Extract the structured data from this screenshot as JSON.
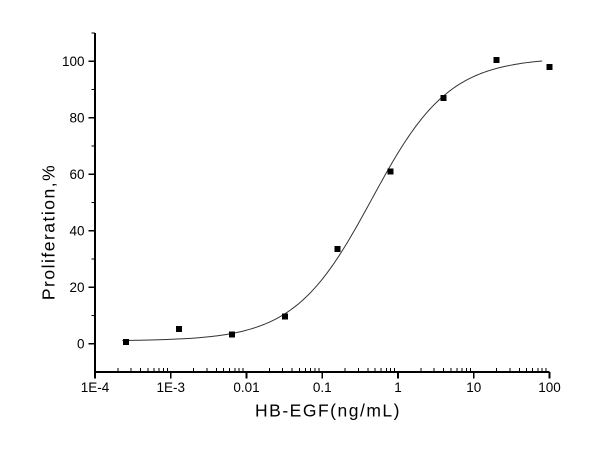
{
  "figure": {
    "background": "#ffffff",
    "axis_color": "#000000",
    "text_color": "#000000"
  },
  "chart_data": {
    "type": "scatter",
    "title": "",
    "xlabel": "HB-EGF(ng/mL)",
    "ylabel": "Proliferation,%",
    "x_scale": "log",
    "y_scale": "linear",
    "xlim": [
      0.0001,
      100
    ],
    "ylim": [
      -10,
      110
    ],
    "grid": false,
    "legend": null,
    "marker": {
      "shape": "square",
      "size": 6,
      "color": "#000000"
    },
    "curve_style": {
      "color": "#333333",
      "width": 1
    },
    "x_major_ticks": [
      {
        "value": 0.0001,
        "label": "1E-4"
      },
      {
        "value": 0.001,
        "label": "1E-3"
      },
      {
        "value": 0.01,
        "label": "0.01"
      },
      {
        "value": 0.1,
        "label": "0.1"
      },
      {
        "value": 1,
        "label": "1"
      },
      {
        "value": 10,
        "label": "10"
      },
      {
        "value": 100,
        "label": "100"
      }
    ],
    "x_minor_decades": [
      -4,
      -3,
      -2,
      -1,
      0,
      1
    ],
    "y_major_ticks": [
      {
        "value": 0,
        "label": "0"
      },
      {
        "value": 20,
        "label": "20"
      },
      {
        "value": 40,
        "label": "40"
      },
      {
        "value": 60,
        "label": "60"
      },
      {
        "value": 80,
        "label": "80"
      },
      {
        "value": 100,
        "label": "100"
      }
    ],
    "y_minor_ticks": [
      10,
      30,
      50,
      70,
      90,
      110
    ],
    "points": [
      {
        "x": 0.000256,
        "y": 0.7
      },
      {
        "x": 0.00128,
        "y": 5.3
      },
      {
        "x": 0.0064,
        "y": 3.3
      },
      {
        "x": 0.032,
        "y": 9.6
      },
      {
        "x": 0.16,
        "y": 33.5
      },
      {
        "x": 0.8,
        "y": 61
      },
      {
        "x": 4,
        "y": 87
      },
      {
        "x": 20,
        "y": 100.5
      },
      {
        "x": 100,
        "y": 98
      }
    ],
    "fit_curve": {
      "model": "4PL-sigmoid",
      "bottom": 1.0,
      "top": 101.3,
      "ec50": 0.45,
      "hill": 0.85,
      "x_start": 0.00023,
      "x_end": 80
    }
  }
}
